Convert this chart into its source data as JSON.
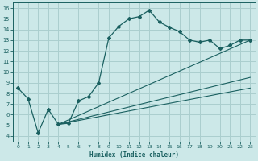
{
  "xlabel": "Humidex (Indice chaleur)",
  "bg_color": "#cce8e8",
  "grid_color": "#aacece",
  "line_color": "#1a6060",
  "xlim": [
    -0.5,
    23.5
  ],
  "ylim": [
    3.5,
    16.5
  ],
  "yticks": [
    4,
    5,
    6,
    7,
    8,
    9,
    10,
    11,
    12,
    13,
    14,
    15,
    16
  ],
  "xticks": [
    0,
    1,
    2,
    3,
    4,
    5,
    6,
    7,
    8,
    9,
    10,
    11,
    12,
    13,
    14,
    15,
    16,
    17,
    18,
    19,
    20,
    21,
    22,
    23
  ],
  "curve1_x": [
    0,
    1,
    2,
    3,
    4,
    5,
    6,
    7,
    8,
    9,
    10,
    11,
    12,
    13,
    14,
    15,
    16,
    17,
    18,
    19,
    20,
    21,
    22,
    23
  ],
  "curve1_y": [
    8.5,
    7.5,
    4.3,
    6.5,
    5.1,
    5.2,
    7.3,
    7.7,
    9.0,
    13.2,
    14.3,
    15.0,
    15.2,
    15.8,
    14.7,
    14.2,
    13.8,
    13.0,
    12.8,
    13.0,
    12.2,
    12.5,
    13.0,
    13.0
  ],
  "line2_x": [
    4,
    23
  ],
  "line2_y": [
    5.1,
    8.5
  ],
  "line3_x": [
    4,
    23
  ],
  "line3_y": [
    5.1,
    9.5
  ],
  "line4_x": [
    4,
    23
  ],
  "line4_y": [
    5.1,
    13.0
  ]
}
